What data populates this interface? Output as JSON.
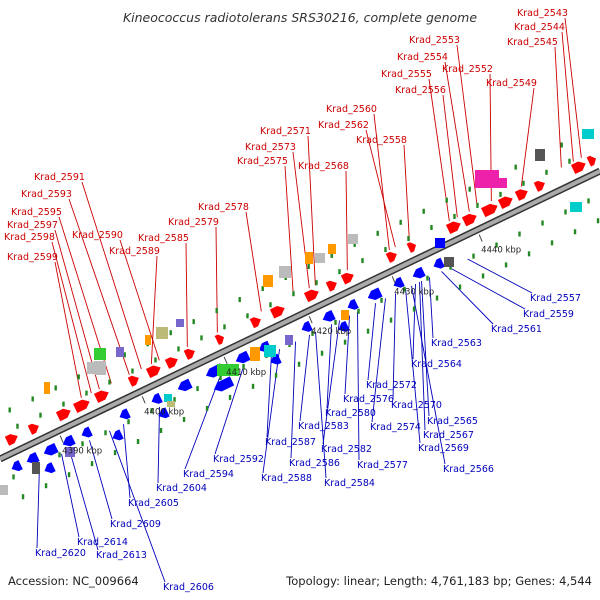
{
  "title": "Kineococcus radiotolerans SRS30216, complete genome",
  "footer": {
    "accession": "Accession: NC_009664",
    "summary": "Topology: linear; Length: 4,761,183 bp; Genes: 4,544"
  },
  "colors": {
    "forward_label": "#cc0000",
    "reverse_label": "#0000bb",
    "forward_gene": "#ff0000",
    "reverse_gene": "#0000ff",
    "backbone": "#999999",
    "backbone_edge": "#333333",
    "rna_gene": "#ff9900",
    "gray_gene": "#bbbbbb",
    "magenta_gene": "#ee22aa",
    "cyan_gene": "#00cccc",
    "green_gene": "#33cc33",
    "olive_gene": "#bbbb77",
    "dark_gray_gene": "#555555",
    "violet_gene": "#7766cc",
    "tick_green": "#228822"
  },
  "ticks": [
    "4390 kbp",
    "4400 kbp",
    "4410 kbp",
    "4420 kbp",
    "4430 kbp",
    "4440 kbp"
  ],
  "forward_labels": [
    "Krad_2543",
    "Krad_2544",
    "Krad_2545",
    "Krad_2553",
    "Krad_2554",
    "Krad_2552",
    "Krad_2555",
    "Krad_2556",
    "Krad_2549",
    "Krad_2560",
    "Krad_2562",
    "Krad_2558",
    "Krad_2571",
    "Krad_2573",
    "Krad_2575",
    "Krad_2568",
    "Krad_2578",
    "Krad_2579",
    "Krad_2591",
    "Krad_2593",
    "Krad_2595",
    "Krad_2590",
    "Krad_2597",
    "Krad_2598",
    "Krad_2585",
    "Krad_2589",
    "Krad_2599"
  ],
  "reverse_labels": [
    "Krad_2557",
    "Krad_2559",
    "Krad_2561",
    "Krad_2563",
    "Krad_2564",
    "Krad_2572",
    "Krad_2576",
    "Krad_2570",
    "Krad_2580",
    "Krad_2565",
    "Krad_2574",
    "Krad_2567",
    "Krad_2583",
    "Krad_2569",
    "Krad_2582",
    "Krad_2587",
    "Krad_2577",
    "Krad_2586",
    "Krad_2566",
    "Krad_2592",
    "Krad_2588",
    "Krad_2584",
    "Krad_2594",
    "Krad_2604",
    "Krad_2605",
    "Krad_2609",
    "Krad_2614",
    "Krad_2620",
    "Krad_2613",
    "Krad_2606"
  ]
}
